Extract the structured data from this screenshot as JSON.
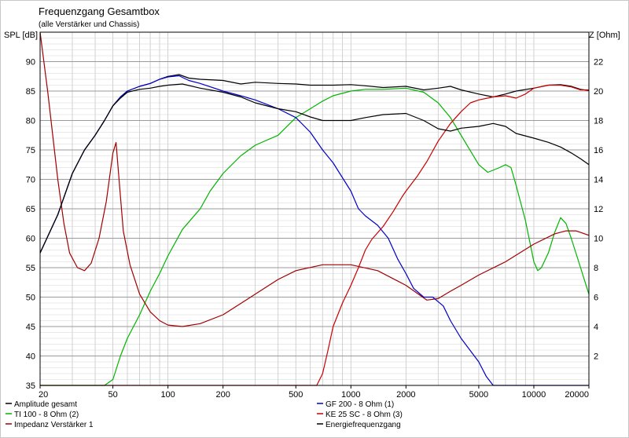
{
  "chart_data": {
    "type": "line",
    "title": "Frequenzgang Gesamtbox",
    "subtitle": "(alle Verstärker und Chassis)",
    "y_left_label": "SPL [dB]",
    "y_right_label": "Z [Ohm]",
    "x_scale": "log",
    "xlim": [
      20,
      20000
    ],
    "ylim_left": [
      35,
      95
    ],
    "ylim_right": [
      0,
      24
    ],
    "x_ticks": [
      "20",
      "50",
      "100",
      "200",
      "500",
      "1000",
      "2000",
      "5000",
      "10000",
      "20000"
    ],
    "y_left_ticks": [
      "35",
      "40",
      "45",
      "50",
      "55",
      "60",
      "65",
      "70",
      "75",
      "80",
      "85",
      "90"
    ],
    "y_right_ticks": [
      "2",
      "4",
      "6",
      "8",
      "10",
      "12",
      "14",
      "16",
      "18",
      "20",
      "22"
    ],
    "grid": true,
    "legend_position": "bottom",
    "series": [
      {
        "name": "Amplitude gesamt",
        "axis": "left",
        "color": "#000000",
        "points": [
          [
            20,
            57.5
          ],
          [
            25,
            64
          ],
          [
            30,
            71
          ],
          [
            35,
            75
          ],
          [
            40,
            77.5
          ],
          [
            45,
            80
          ],
          [
            50,
            82.5
          ],
          [
            55,
            84
          ],
          [
            60,
            85
          ],
          [
            70,
            85.8
          ],
          [
            80,
            86.3
          ],
          [
            90,
            87
          ],
          [
            100,
            87.5
          ],
          [
            115,
            87.8
          ],
          [
            130,
            87.2
          ],
          [
            150,
            87
          ],
          [
            200,
            86.8
          ],
          [
            250,
            86.2
          ],
          [
            300,
            86.5
          ],
          [
            400,
            86.3
          ],
          [
            500,
            86.2
          ],
          [
            600,
            86
          ],
          [
            800,
            86
          ],
          [
            1000,
            86.1
          ],
          [
            1200,
            85.9
          ],
          [
            1500,
            85.6
          ],
          [
            2000,
            85.8
          ],
          [
            2500,
            85.2
          ],
          [
            3000,
            85.5
          ],
          [
            3500,
            85.8
          ],
          [
            4000,
            85.2
          ],
          [
            5000,
            84.5
          ],
          [
            6000,
            84
          ],
          [
            7000,
            84.5
          ],
          [
            8000,
            85
          ],
          [
            10000,
            85.5
          ],
          [
            12000,
            86
          ],
          [
            14000,
            86.1
          ],
          [
            16000,
            85.8
          ],
          [
            18000,
            85.3
          ],
          [
            20000,
            85.1
          ]
        ]
      },
      {
        "name": "TI 100 - 8 Ohm (2)",
        "axis": "left",
        "color": "#00b400",
        "points": [
          [
            20,
            35
          ],
          [
            45,
            35
          ],
          [
            50,
            36
          ],
          [
            55,
            40
          ],
          [
            60,
            43
          ],
          [
            70,
            47
          ],
          [
            80,
            51
          ],
          [
            90,
            54
          ],
          [
            100,
            57
          ],
          [
            120,
            61.5
          ],
          [
            150,
            65
          ],
          [
            170,
            68
          ],
          [
            200,
            71
          ],
          [
            250,
            74
          ],
          [
            300,
            75.8
          ],
          [
            400,
            77.5
          ],
          [
            500,
            80.5
          ],
          [
            600,
            82
          ],
          [
            700,
            83.3
          ],
          [
            800,
            84.2
          ],
          [
            1000,
            85
          ],
          [
            1200,
            85.3
          ],
          [
            1500,
            85.3
          ],
          [
            2000,
            85.5
          ],
          [
            2500,
            84.8
          ],
          [
            3000,
            83
          ],
          [
            3500,
            80.5
          ],
          [
            4000,
            77.5
          ],
          [
            5000,
            72.5
          ],
          [
            5600,
            71.2
          ],
          [
            6500,
            72
          ],
          [
            7000,
            72.5
          ],
          [
            7500,
            72
          ],
          [
            8000,
            69
          ],
          [
            9000,
            63
          ],
          [
            10000,
            56
          ],
          [
            10500,
            54.5
          ],
          [
            11000,
            55
          ],
          [
            12000,
            57.5
          ],
          [
            13000,
            61
          ],
          [
            14000,
            63.5
          ],
          [
            15000,
            62.5
          ],
          [
            16000,
            60
          ],
          [
            18000,
            55
          ],
          [
            20000,
            50.5
          ]
        ]
      },
      {
        "name": "Impedanz Verstärker 1",
        "axis": "right",
        "color": "#a00000",
        "points": [
          [
            20,
            24
          ],
          [
            22,
            20
          ],
          [
            25,
            14
          ],
          [
            27,
            11
          ],
          [
            29,
            9
          ],
          [
            32,
            8
          ],
          [
            35,
            7.8
          ],
          [
            38,
            8.3
          ],
          [
            42,
            10
          ],
          [
            46,
            12.5
          ],
          [
            50,
            15.8
          ],
          [
            52,
            16.5
          ],
          [
            54,
            14
          ],
          [
            57,
            10.5
          ],
          [
            62,
            8.2
          ],
          [
            70,
            6.2
          ],
          [
            80,
            5
          ],
          [
            90,
            4.4
          ],
          [
            100,
            4.1
          ],
          [
            120,
            4
          ],
          [
            150,
            4.2
          ],
          [
            200,
            4.8
          ],
          [
            300,
            6.2
          ],
          [
            400,
            7.2
          ],
          [
            500,
            7.8
          ],
          [
            700,
            8.2
          ],
          [
            1000,
            8.2
          ],
          [
            1400,
            7.8
          ],
          [
            2000,
            6.8
          ],
          [
            2600,
            5.8
          ],
          [
            3000,
            5.9
          ],
          [
            3500,
            6.4
          ],
          [
            4000,
            6.8
          ],
          [
            5000,
            7.5
          ],
          [
            7000,
            8.4
          ],
          [
            10000,
            9.6
          ],
          [
            13000,
            10.3
          ],
          [
            15000,
            10.5
          ],
          [
            17000,
            10.5
          ],
          [
            20000,
            10.2
          ]
        ]
      },
      {
        "name": "GF 200 - 8 Ohm (1)",
        "axis": "left",
        "color": "#0000c8",
        "points": [
          [
            20,
            57.5
          ],
          [
            25,
            64
          ],
          [
            30,
            71
          ],
          [
            35,
            75
          ],
          [
            40,
            77.5
          ],
          [
            45,
            80
          ],
          [
            50,
            82.5
          ],
          [
            55,
            84
          ],
          [
            60,
            85
          ],
          [
            70,
            85.8
          ],
          [
            80,
            86.3
          ],
          [
            90,
            87
          ],
          [
            100,
            87.4
          ],
          [
            115,
            87.6
          ],
          [
            130,
            86.8
          ],
          [
            150,
            86.3
          ],
          [
            200,
            85
          ],
          [
            250,
            84.2
          ],
          [
            300,
            83.5
          ],
          [
            400,
            82
          ],
          [
            500,
            80.5
          ],
          [
            600,
            78
          ],
          [
            700,
            75
          ],
          [
            800,
            72.8
          ],
          [
            1000,
            68
          ],
          [
            1100,
            65
          ],
          [
            1200,
            63.8
          ],
          [
            1400,
            62.2
          ],
          [
            1600,
            60
          ],
          [
            1800,
            56.5
          ],
          [
            2000,
            54
          ],
          [
            2200,
            51.5
          ],
          [
            2500,
            50
          ],
          [
            2800,
            50
          ],
          [
            3200,
            48.5
          ],
          [
            3500,
            46
          ],
          [
            4000,
            43
          ],
          [
            5000,
            39
          ],
          [
            5500,
            36.5
          ],
          [
            6000,
            35
          ],
          [
            20000,
            35
          ]
        ]
      },
      {
        "name": "KE 25 SC - 8 Ohm     (3)",
        "axis": "left",
        "color": "#c80000",
        "points": [
          [
            20,
            35
          ],
          [
            650,
            35
          ],
          [
            700,
            37
          ],
          [
            750,
            41
          ],
          [
            800,
            45
          ],
          [
            900,
            49
          ],
          [
            1000,
            52
          ],
          [
            1100,
            55
          ],
          [
            1200,
            58
          ],
          [
            1300,
            59.8
          ],
          [
            1500,
            62
          ],
          [
            1700,
            64.5
          ],
          [
            1900,
            67
          ],
          [
            2000,
            68
          ],
          [
            2300,
            70.5
          ],
          [
            2600,
            73
          ],
          [
            3000,
            76.5
          ],
          [
            3500,
            79.5
          ],
          [
            4000,
            81.5
          ],
          [
            4500,
            83
          ],
          [
            5000,
            83.5
          ],
          [
            6000,
            84
          ],
          [
            7000,
            84.2
          ],
          [
            8000,
            83.8
          ],
          [
            9000,
            84.5
          ],
          [
            10000,
            85.5
          ],
          [
            12000,
            86
          ],
          [
            14000,
            86
          ],
          [
            16000,
            85.7
          ],
          [
            18000,
            85.2
          ],
          [
            20000,
            85.2
          ]
        ]
      },
      {
        "name": "Energiefrequenzgang",
        "axis": "left",
        "color": "#000000",
        "points": [
          [
            20,
            57.5
          ],
          [
            25,
            64
          ],
          [
            30,
            71
          ],
          [
            35,
            75
          ],
          [
            40,
            77.5
          ],
          [
            45,
            80
          ],
          [
            50,
            82.5
          ],
          [
            55,
            83.8
          ],
          [
            60,
            84.8
          ],
          [
            70,
            85.3
          ],
          [
            80,
            85.5
          ],
          [
            90,
            85.8
          ],
          [
            100,
            86
          ],
          [
            120,
            86.2
          ],
          [
            150,
            85.5
          ],
          [
            200,
            84.8
          ],
          [
            250,
            84
          ],
          [
            300,
            83
          ],
          [
            400,
            82
          ],
          [
            500,
            81.5
          ],
          [
            600,
            80.6
          ],
          [
            700,
            80
          ],
          [
            800,
            80
          ],
          [
            1000,
            80
          ],
          [
            1200,
            80.5
          ],
          [
            1500,
            81
          ],
          [
            2000,
            81.2
          ],
          [
            2500,
            80
          ],
          [
            3000,
            78.6
          ],
          [
            3500,
            78.2
          ],
          [
            4000,
            78.7
          ],
          [
            5000,
            79
          ],
          [
            6000,
            79.5
          ],
          [
            7000,
            79
          ],
          [
            8000,
            77.8
          ],
          [
            10000,
            77
          ],
          [
            12000,
            76.3
          ],
          [
            14000,
            75.5
          ],
          [
            16000,
            74.5
          ],
          [
            18000,
            73.5
          ],
          [
            20000,
            72.5
          ]
        ]
      }
    ],
    "legend": [
      {
        "label": "Amplitude gesamt",
        "color": "#000000"
      },
      {
        "label": "TI 100 - 8 Ohm (2)",
        "color": "#00b400"
      },
      {
        "label": "Impedanz Verstärker 1",
        "color": "#a00000"
      },
      {
        "label": "GF 200 - 8 Ohm (1)",
        "color": "#0000c8"
      },
      {
        "label": "KE 25 SC - 8 Ohm     (3)",
        "color": "#c80000"
      },
      {
        "label": "Energiefrequenzgang",
        "color": "#000000"
      }
    ]
  }
}
